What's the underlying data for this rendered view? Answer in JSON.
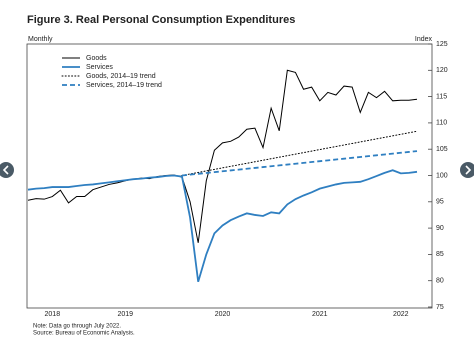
{
  "chart_data": {
    "type": "line",
    "title": "Figure 3. Real Personal Consumption Expenditures",
    "left_label": "Monthly",
    "right_label": "Index",
    "notes": [
      "Note: Data go through July 2022.",
      "Source: Bureau of Economic Analysis."
    ],
    "categories": [
      null,
      null,
      null,
      "2018",
      null,
      null,
      null,
      null,
      null,
      null,
      null,
      null,
      "2019",
      null,
      null,
      null,
      null,
      null,
      null,
      null,
      null,
      null,
      null,
      null,
      "2020",
      null,
      null,
      null,
      null,
      null,
      null,
      null,
      null,
      null,
      null,
      null,
      "2021",
      null,
      null,
      null,
      null,
      null,
      null,
      null,
      null,
      null,
      "2022",
      null,
      null
    ],
    "series": [
      {
        "name": "Goods",
        "color": "#000000",
        "style": "solid",
        "values": [
          95.3,
          95.6,
          95.5,
          96,
          97.2,
          94.8,
          96,
          96,
          97.3,
          97.8,
          98.3,
          98.6,
          99,
          99.3,
          99.5,
          99.4,
          99.8,
          100,
          100.1,
          99.7,
          95,
          87.2,
          99,
          104.8,
          106.2,
          106.5,
          107.3,
          108.8,
          109,
          105.3,
          112.8,
          108.5,
          120,
          119.6,
          116.4,
          116.8,
          114.2,
          115.8,
          115.3,
          117,
          116.8,
          112,
          115.8,
          114.8,
          116,
          114.2,
          114.3,
          114.3,
          114.5
        ]
      },
      {
        "name": "Services",
        "color": "#2f7fc1",
        "style": "solid",
        "values": [
          97.3,
          97.5,
          97.6,
          97.8,
          97.8,
          97.8,
          98,
          98.2,
          98.3,
          98.5,
          98.7,
          98.9,
          99.1,
          99.3,
          99.4,
          99.6,
          99.7,
          99.9,
          100,
          99.8,
          92,
          79.8,
          85,
          89,
          90.5,
          91.5,
          92.2,
          92.8,
          92.5,
          92.3,
          93,
          92.8,
          94.5,
          95.5,
          96.2,
          96.8,
          97.5,
          97.9,
          98.3,
          98.6,
          98.7,
          98.8,
          99.3,
          99.9,
          100.5,
          101,
          100.4,
          100.5,
          100.7
        ]
      },
      {
        "name": "Goods, 2014–19 trend",
        "color": "#000000",
        "style": "dotted",
        "values": [
          null,
          null,
          null,
          null,
          null,
          null,
          null,
          null,
          null,
          null,
          null,
          null,
          null,
          null,
          null,
          null,
          null,
          null,
          null,
          100,
          100.29,
          100.58,
          100.87,
          101.16,
          101.45,
          101.74,
          102.03,
          102.32,
          102.61,
          102.9,
          103.19,
          103.48,
          103.77,
          104.06,
          104.35,
          104.64,
          104.93,
          105.22,
          105.51,
          105.8,
          106.09,
          106.38,
          106.67,
          106.96,
          107.25,
          107.54,
          107.83,
          108.12,
          108.41
        ]
      },
      {
        "name": "Services, 2014–19 trend",
        "color": "#2f7fc1",
        "style": "dashed",
        "values": [
          null,
          null,
          null,
          null,
          null,
          null,
          null,
          null,
          null,
          null,
          null,
          null,
          null,
          null,
          null,
          null,
          null,
          null,
          null,
          100,
          100.16,
          100.32,
          100.48,
          100.64,
          100.8,
          100.96,
          101.12,
          101.28,
          101.44,
          101.6,
          101.76,
          101.92,
          102.08,
          102.24,
          102.4,
          102.56,
          102.72,
          102.88,
          103.04,
          103.2,
          103.36,
          103.52,
          103.68,
          103.84,
          104,
          104.16,
          104.32,
          104.48,
          104.64
        ]
      }
    ],
    "ylim": [
      75,
      125
    ],
    "yticks": [
      75,
      80,
      85,
      90,
      95,
      100,
      105,
      110,
      115,
      120,
      125
    ],
    "y_axis_side": "right",
    "legend": "top-left",
    "grid": false
  }
}
